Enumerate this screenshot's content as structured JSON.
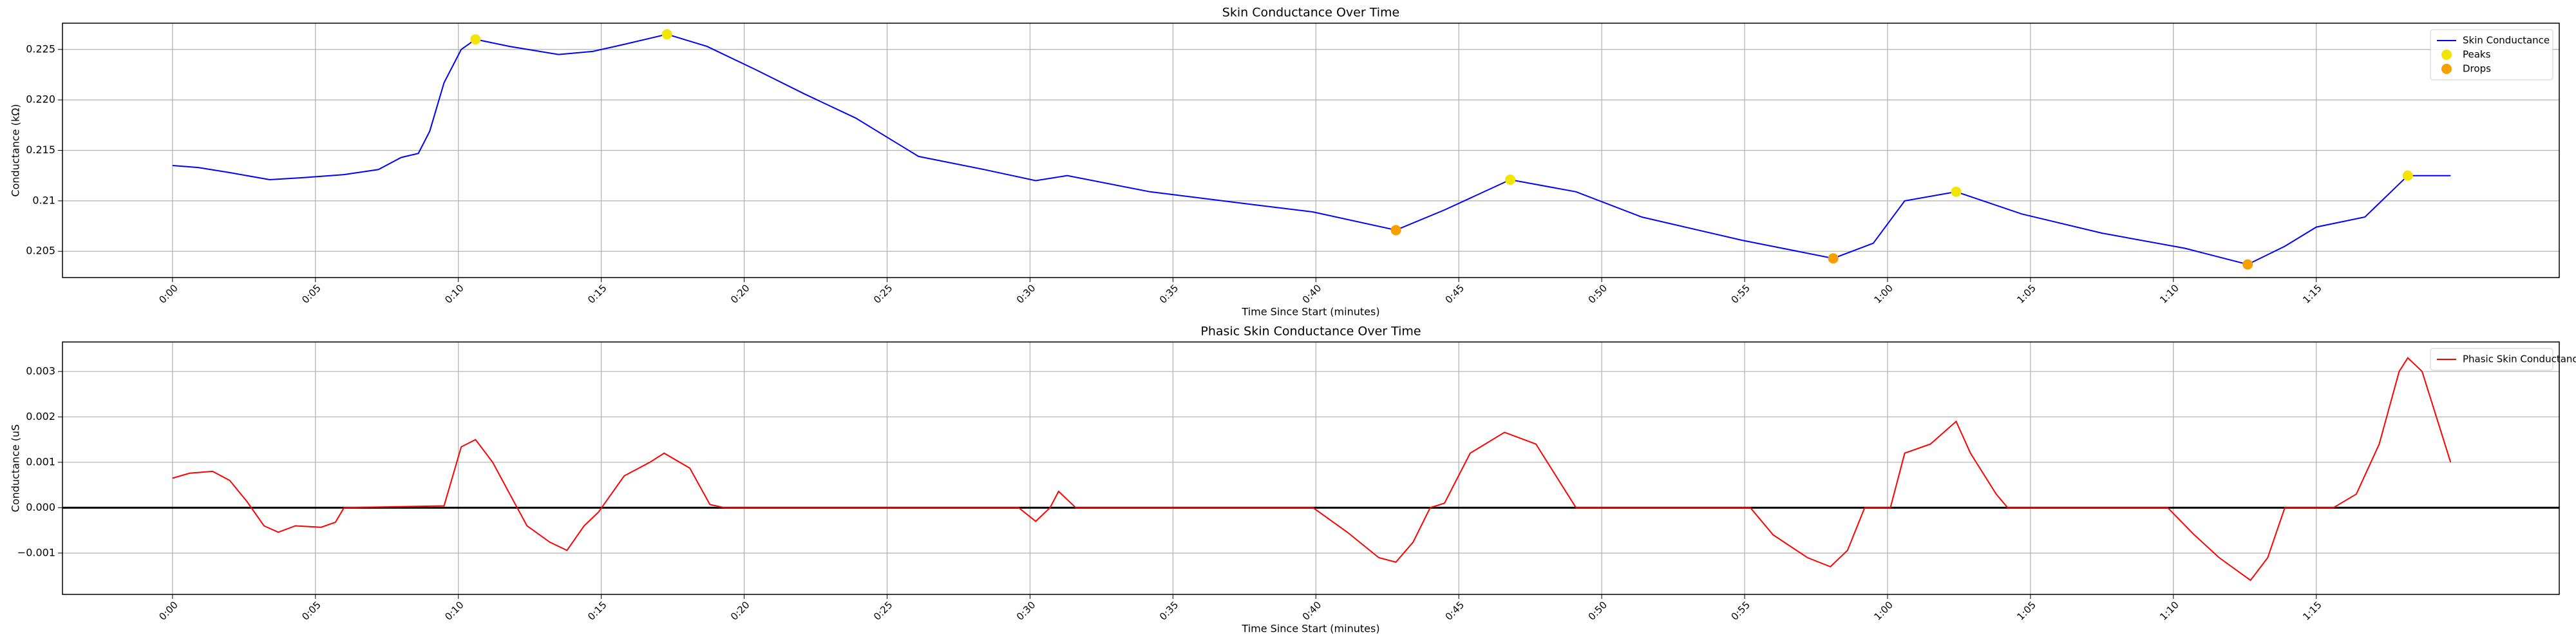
{
  "chart_data": [
    {
      "type": "line",
      "title": "Skin Conductance Over Time",
      "xlabel": "Time Since Start (minutes)",
      "ylabel": "Conductance (kΩ)",
      "xlim": [
        -3.85,
        83.5
      ],
      "ylim": [
        0.2024,
        0.2276
      ],
      "grid": true,
      "legend": "upper right",
      "xticks": [
        {
          "value": 0,
          "label": "0:00"
        },
        {
          "value": 5,
          "label": "0:05"
        },
        {
          "value": 10,
          "label": "0:10"
        },
        {
          "value": 15,
          "label": "0:15"
        },
        {
          "value": 20,
          "label": "0:20"
        },
        {
          "value": 25,
          "label": "0:25"
        },
        {
          "value": 30,
          "label": "0:30"
        },
        {
          "value": 35,
          "label": "0:35"
        },
        {
          "value": 40,
          "label": "0:40"
        },
        {
          "value": 45,
          "label": "0:45"
        },
        {
          "value": 50,
          "label": "0:50"
        },
        {
          "value": 55,
          "label": "0:55"
        },
        {
          "value": 60,
          "label": "1:00"
        },
        {
          "value": 65,
          "label": "1:05"
        },
        {
          "value": 70,
          "label": "1:10"
        },
        {
          "value": 75,
          "label": "1:15"
        }
      ],
      "yticks": [
        0.205,
        0.21,
        0.215,
        {
          "value": 0.22,
          "label": "0.220"
        },
        0.225
      ],
      "series": [
        {
          "name": "Skin Conductance",
          "color": "#0000ff",
          "style": "line",
          "x": [
            0,
            0.9,
            2.0,
            3.4,
            4.6,
            6.0,
            7.2,
            8.0,
            8.6,
            9.0,
            9.5,
            10.1,
            10.6,
            11.8,
            13.5,
            14.7,
            15.8,
            17.3,
            18.7,
            20.4,
            22.1,
            23.9,
            26.1,
            28.4,
            30.2,
            31.3,
            34.2,
            37.6,
            39.9,
            42.8,
            44.5,
            46.8,
            49.1,
            51.4,
            54.9,
            58.1,
            59.5,
            60.6,
            62.4,
            64.7,
            67.5,
            70.4,
            72.6,
            73.9,
            75.0,
            76.7,
            78.2,
            79.7
          ],
          "values": [
            0.2135,
            0.2133,
            0.2128,
            0.2121,
            0.2123,
            0.2126,
            0.2131,
            0.2143,
            0.2147,
            0.2169,
            0.2217,
            0.225,
            0.226,
            0.2253,
            0.2245,
            0.2248,
            0.2255,
            0.2265,
            0.2253,
            0.223,
            0.2206,
            0.2182,
            0.2144,
            0.2131,
            0.212,
            0.2125,
            0.2109,
            0.2097,
            0.2089,
            0.2071,
            0.2091,
            0.2121,
            0.2109,
            0.2084,
            0.2061,
            0.2043,
            0.2058,
            0.21,
            0.2109,
            0.2087,
            0.2068,
            0.2053,
            0.2037,
            0.2055,
            0.2074,
            0.2084,
            0.2125,
            0.2125
          ]
        },
        {
          "name": "Peaks",
          "color": "#f2e600",
          "style": "points",
          "x": [
            10.6,
            17.3,
            46.8,
            62.4,
            78.2
          ],
          "values": [
            0.226,
            0.2265,
            0.2121,
            0.2109,
            0.2125
          ]
        },
        {
          "name": "Drops",
          "color": "#f5a000",
          "style": "points",
          "x": [
            42.8,
            58.1,
            72.6
          ],
          "values": [
            0.2071,
            0.2043,
            0.2037
          ]
        }
      ]
    },
    {
      "type": "line",
      "title": "Phasic Skin Conductance Over Time",
      "xlabel": "Time Since Start (minutes)",
      "ylabel": "Conductance (uS",
      "xlim": [
        -3.85,
        83.5
      ],
      "ylim": [
        -0.00191,
        0.00365
      ],
      "grid": true,
      "legend": "upper right",
      "hline": 0,
      "xticks": [
        {
          "value": 0,
          "label": "0:00"
        },
        {
          "value": 5,
          "label": "0:05"
        },
        {
          "value": 10,
          "label": "0:10"
        },
        {
          "value": 15,
          "label": "0:15"
        },
        {
          "value": 20,
          "label": "0:20"
        },
        {
          "value": 25,
          "label": "0:25"
        },
        {
          "value": 30,
          "label": "0:30"
        },
        {
          "value": 35,
          "label": "0:35"
        },
        {
          "value": 40,
          "label": "0:40"
        },
        {
          "value": 45,
          "label": "0:45"
        },
        {
          "value": 50,
          "label": "0:50"
        },
        {
          "value": 55,
          "label": "0:55"
        },
        {
          "value": 60,
          "label": "1:00"
        },
        {
          "value": 65,
          "label": "1:05"
        },
        {
          "value": 70,
          "label": "1:10"
        },
        {
          "value": 75,
          "label": "1:15"
        }
      ],
      "yticks": [
        {
          "value": -0.001,
          "label": "−0.001"
        },
        {
          "value": 0,
          "label": "0.000"
        },
        0.001,
        0.002,
        0.003
      ],
      "series": [
        {
          "name": "Phasic Skin Conductance",
          "color": "#ff0000",
          "style": "line",
          "x": [
            0,
            0.6,
            1.4,
            2.0,
            2.6,
            3.2,
            3.7,
            4.3,
            5.2,
            5.7,
            6.0,
            9.5,
            10.1,
            10.6,
            11.2,
            11.8,
            12.4,
            13.2,
            13.8,
            14.4,
            14.9,
            15.8,
            16.7,
            17.2,
            18.1,
            18.8,
            19.3,
            29.6,
            30.2,
            30.7,
            31.0,
            31.6,
            39.9,
            41.1,
            42.2,
            42.8,
            43.4,
            44.0,
            44.5,
            45.4,
            46.6,
            47.7,
            48.6,
            49.1,
            55.2,
            56.0,
            57.2,
            58.0,
            58.6,
            59.2,
            60.1,
            60.6,
            61.5,
            62.4,
            62.9,
            63.8,
            64.2,
            69.8,
            70.7,
            71.6,
            72.7,
            73.3,
            73.9,
            75.6,
            76.4,
            77.2,
            77.9,
            78.2,
            78.7,
            79.3,
            79.7
          ],
          "values": [
            0.00065,
            0.00076,
            0.0008,
            0.0006,
            0.00014,
            -0.0004,
            -0.00054,
            -0.0004,
            -0.00043,
            -0.00032,
            0,
            4e-05,
            0.00134,
            0.0015,
            0.001,
            0.0003,
            -0.0004,
            -0.00076,
            -0.00094,
            -0.0004,
            -0.0001,
            0.0007,
            0.001,
            0.0012,
            0.00087,
            7e-05,
            0,
            0,
            -0.0003,
            0,
            0.00036,
            0,
            0,
            -0.00054,
            -0.0011,
            -0.0012,
            -0.00076,
            0,
            0.0001,
            0.0012,
            0.00166,
            0.0014,
            0.0005,
            0,
            0,
            -0.0006,
            -0.0011,
            -0.0013,
            -0.00094,
            0,
            0,
            0.0012,
            0.0014,
            0.0019,
            0.0012,
            0.0003,
            0,
            0,
            -0.00058,
            -0.0011,
            -0.0016,
            -0.0011,
            0,
            0,
            0.0003,
            0.0014,
            0.003,
            0.0033,
            0.003,
            0.0018,
            0.001
          ]
        }
      ]
    }
  ]
}
